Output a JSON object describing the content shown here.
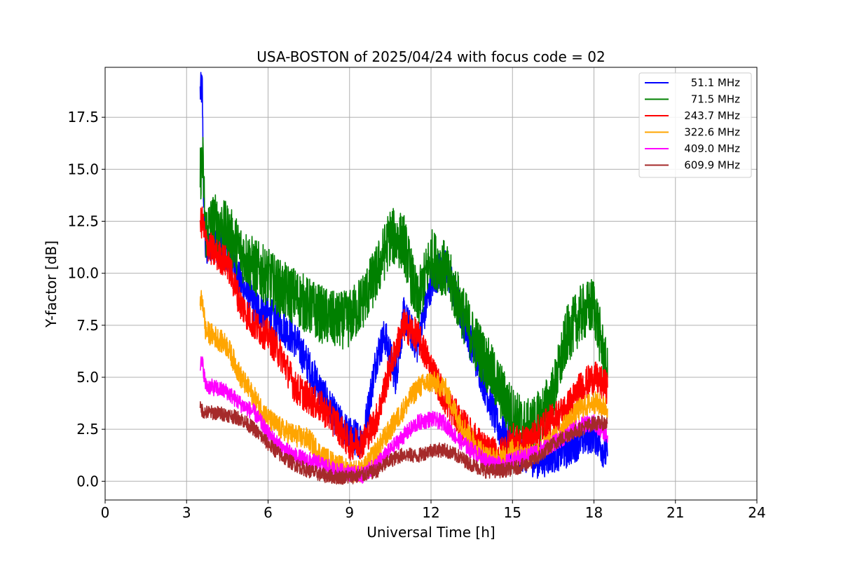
{
  "chart_data": {
    "type": "line",
    "title": "USA-BOSTON of 2025/04/24 with focus code = 02",
    "xlabel": "Universal Time [h]",
    "ylabel": "Y-factor [dB]",
    "xlim": [
      0,
      24
    ],
    "ylim": [
      -0.9,
      19.9
    ],
    "xticks": [
      0,
      3,
      6,
      9,
      12,
      15,
      18,
      21,
      24
    ],
    "xtick_labels": [
      "0",
      "3",
      "6",
      "9",
      "12",
      "15",
      "18",
      "21",
      "24"
    ],
    "yticks": [
      0.0,
      2.5,
      5.0,
      7.5,
      10.0,
      12.5,
      15.0,
      17.5
    ],
    "ytick_labels": [
      "0.0",
      "2.5",
      "5.0",
      "7.5",
      "10.0",
      "12.5",
      "15.0",
      "17.5"
    ],
    "grid": true,
    "legend_position": "top-right",
    "series": [
      {
        "name": "51.1 MHz",
        "color": "#0000ff",
        "noise": 0.9,
        "x": [
          3.5,
          3.58,
          3.62,
          3.7,
          4.0,
          4.5,
          5.0,
          5.5,
          6.0,
          6.5,
          7.0,
          7.5,
          8.0,
          8.5,
          9.0,
          9.5,
          10.0,
          10.3,
          10.7,
          11.0,
          11.5,
          12.0,
          12.5,
          13.0,
          13.5,
          14.0,
          14.5,
          15.0,
          15.5,
          16.0,
          16.5,
          17.0,
          17.5,
          18.0,
          18.5
        ],
        "values": [
          18.7,
          18.9,
          14.0,
          11.0,
          11.5,
          11.0,
          9.5,
          8.5,
          8.0,
          7.5,
          6.8,
          5.5,
          4.2,
          3.0,
          2.2,
          2.0,
          6.0,
          7.0,
          5.0,
          8.0,
          6.5,
          9.5,
          10.5,
          8.5,
          6.5,
          4.5,
          2.5,
          1.8,
          1.2,
          1.0,
          1.3,
          1.5,
          2.0,
          2.3,
          1.2
        ]
      },
      {
        "name": "71.5 MHz",
        "color": "#008000",
        "noise": 1.4,
        "x": [
          3.5,
          3.6,
          3.7,
          4.0,
          4.5,
          5.0,
          5.5,
          6.0,
          6.5,
          7.0,
          7.5,
          8.0,
          8.5,
          9.0,
          9.5,
          10.0,
          10.5,
          11.0,
          11.5,
          12.0,
          12.5,
          13.0,
          13.5,
          14.0,
          14.5,
          15.0,
          15.5,
          16.0,
          16.5,
          17.0,
          17.5,
          18.0,
          18.5
        ],
        "values": [
          14.8,
          15.3,
          12.0,
          12.5,
          12.0,
          11.0,
          10.3,
          9.8,
          9.2,
          8.9,
          8.4,
          8.0,
          7.7,
          7.8,
          8.7,
          10.0,
          11.8,
          11.5,
          8.5,
          10.8,
          10.2,
          8.7,
          7.0,
          5.8,
          4.5,
          3.2,
          2.5,
          3.0,
          4.2,
          7.0,
          8.0,
          8.5,
          5.0
        ]
      },
      {
        "name": "243.7 MHz",
        "color": "#ff0000",
        "noise": 0.8,
        "x": [
          3.5,
          3.6,
          3.7,
          4.0,
          4.5,
          5.0,
          5.5,
          6.0,
          6.5,
          7.0,
          7.5,
          8.0,
          8.5,
          9.0,
          9.5,
          10.0,
          10.5,
          11.0,
          11.5,
          12.0,
          12.5,
          13.0,
          13.5,
          14.0,
          14.5,
          15.0,
          15.5,
          16.0,
          16.5,
          17.0,
          17.5,
          18.0,
          18.5
        ],
        "values": [
          12.5,
          12.4,
          11.5,
          11.0,
          10.5,
          8.5,
          7.5,
          7.0,
          6.0,
          4.5,
          4.0,
          3.5,
          2.8,
          1.8,
          1.9,
          3.0,
          5.5,
          7.5,
          7.0,
          5.5,
          4.0,
          3.0,
          2.2,
          1.5,
          1.2,
          2.0,
          1.8,
          2.5,
          3.0,
          3.5,
          4.5,
          5.0,
          4.5
        ]
      },
      {
        "name": "322.6 MHz",
        "color": "#ffa500",
        "noise": 0.55,
        "x": [
          3.5,
          3.6,
          3.7,
          4.0,
          4.5,
          5.0,
          5.5,
          6.0,
          6.5,
          7.0,
          7.5,
          8.0,
          8.5,
          9.0,
          9.5,
          10.0,
          10.5,
          11.0,
          11.5,
          12.0,
          12.5,
          13.0,
          13.5,
          14.0,
          14.5,
          15.0,
          15.5,
          16.0,
          16.5,
          17.0,
          17.5,
          18.0,
          18.5
        ],
        "values": [
          8.7,
          8.6,
          7.2,
          7.0,
          6.5,
          5.0,
          4.0,
          3.0,
          2.5,
          2.2,
          2.0,
          1.2,
          0.8,
          0.5,
          0.5,
          1.5,
          2.5,
          3.5,
          4.5,
          4.8,
          4.5,
          3.0,
          2.0,
          1.2,
          1.0,
          1.5,
          1.2,
          1.5,
          2.0,
          2.8,
          3.5,
          3.8,
          3.5
        ]
      },
      {
        "name": "409.0 MHz",
        "color": "#ff00ff",
        "noise": 0.4,
        "x": [
          3.5,
          3.6,
          3.7,
          4.0,
          4.5,
          5.0,
          5.5,
          6.0,
          6.5,
          7.0,
          7.5,
          8.0,
          8.5,
          9.0,
          9.5,
          10.0,
          10.5,
          11.0,
          11.5,
          12.0,
          12.5,
          13.0,
          13.5,
          14.0,
          14.5,
          15.0,
          15.5,
          16.0,
          16.5,
          17.0,
          17.5,
          18.0,
          18.5
        ],
        "values": [
          5.7,
          5.6,
          4.6,
          4.5,
          4.3,
          3.7,
          3.3,
          2.3,
          1.6,
          1.2,
          1.0,
          0.8,
          0.5,
          0.4,
          0.3,
          0.8,
          1.5,
          2.2,
          2.8,
          3.0,
          2.8,
          2.0,
          1.5,
          1.0,
          0.8,
          1.0,
          1.2,
          1.5,
          1.8,
          2.2,
          2.7,
          2.8,
          2.2
        ]
      },
      {
        "name": "609.9 MHz",
        "color": "#a52a2a",
        "noise": 0.35,
        "x": [
          3.5,
          3.6,
          3.7,
          4.0,
          4.5,
          5.0,
          5.5,
          6.0,
          6.5,
          7.0,
          7.5,
          8.0,
          8.5,
          9.0,
          9.5,
          10.0,
          10.5,
          11.0,
          11.5,
          12.0,
          12.5,
          13.0,
          13.5,
          14.0,
          14.5,
          15.0,
          15.5,
          16.0,
          16.5,
          17.0,
          17.5,
          18.0,
          18.5
        ],
        "values": [
          3.5,
          3.4,
          3.3,
          3.3,
          3.2,
          3.0,
          2.5,
          1.8,
          1.2,
          0.8,
          0.5,
          0.3,
          0.2,
          0.2,
          0.3,
          0.5,
          1.0,
          1.3,
          1.2,
          1.5,
          1.5,
          1.2,
          0.8,
          0.5,
          0.5,
          0.6,
          0.8,
          1.2,
          1.8,
          2.2,
          2.5,
          2.8,
          2.8
        ]
      }
    ]
  }
}
